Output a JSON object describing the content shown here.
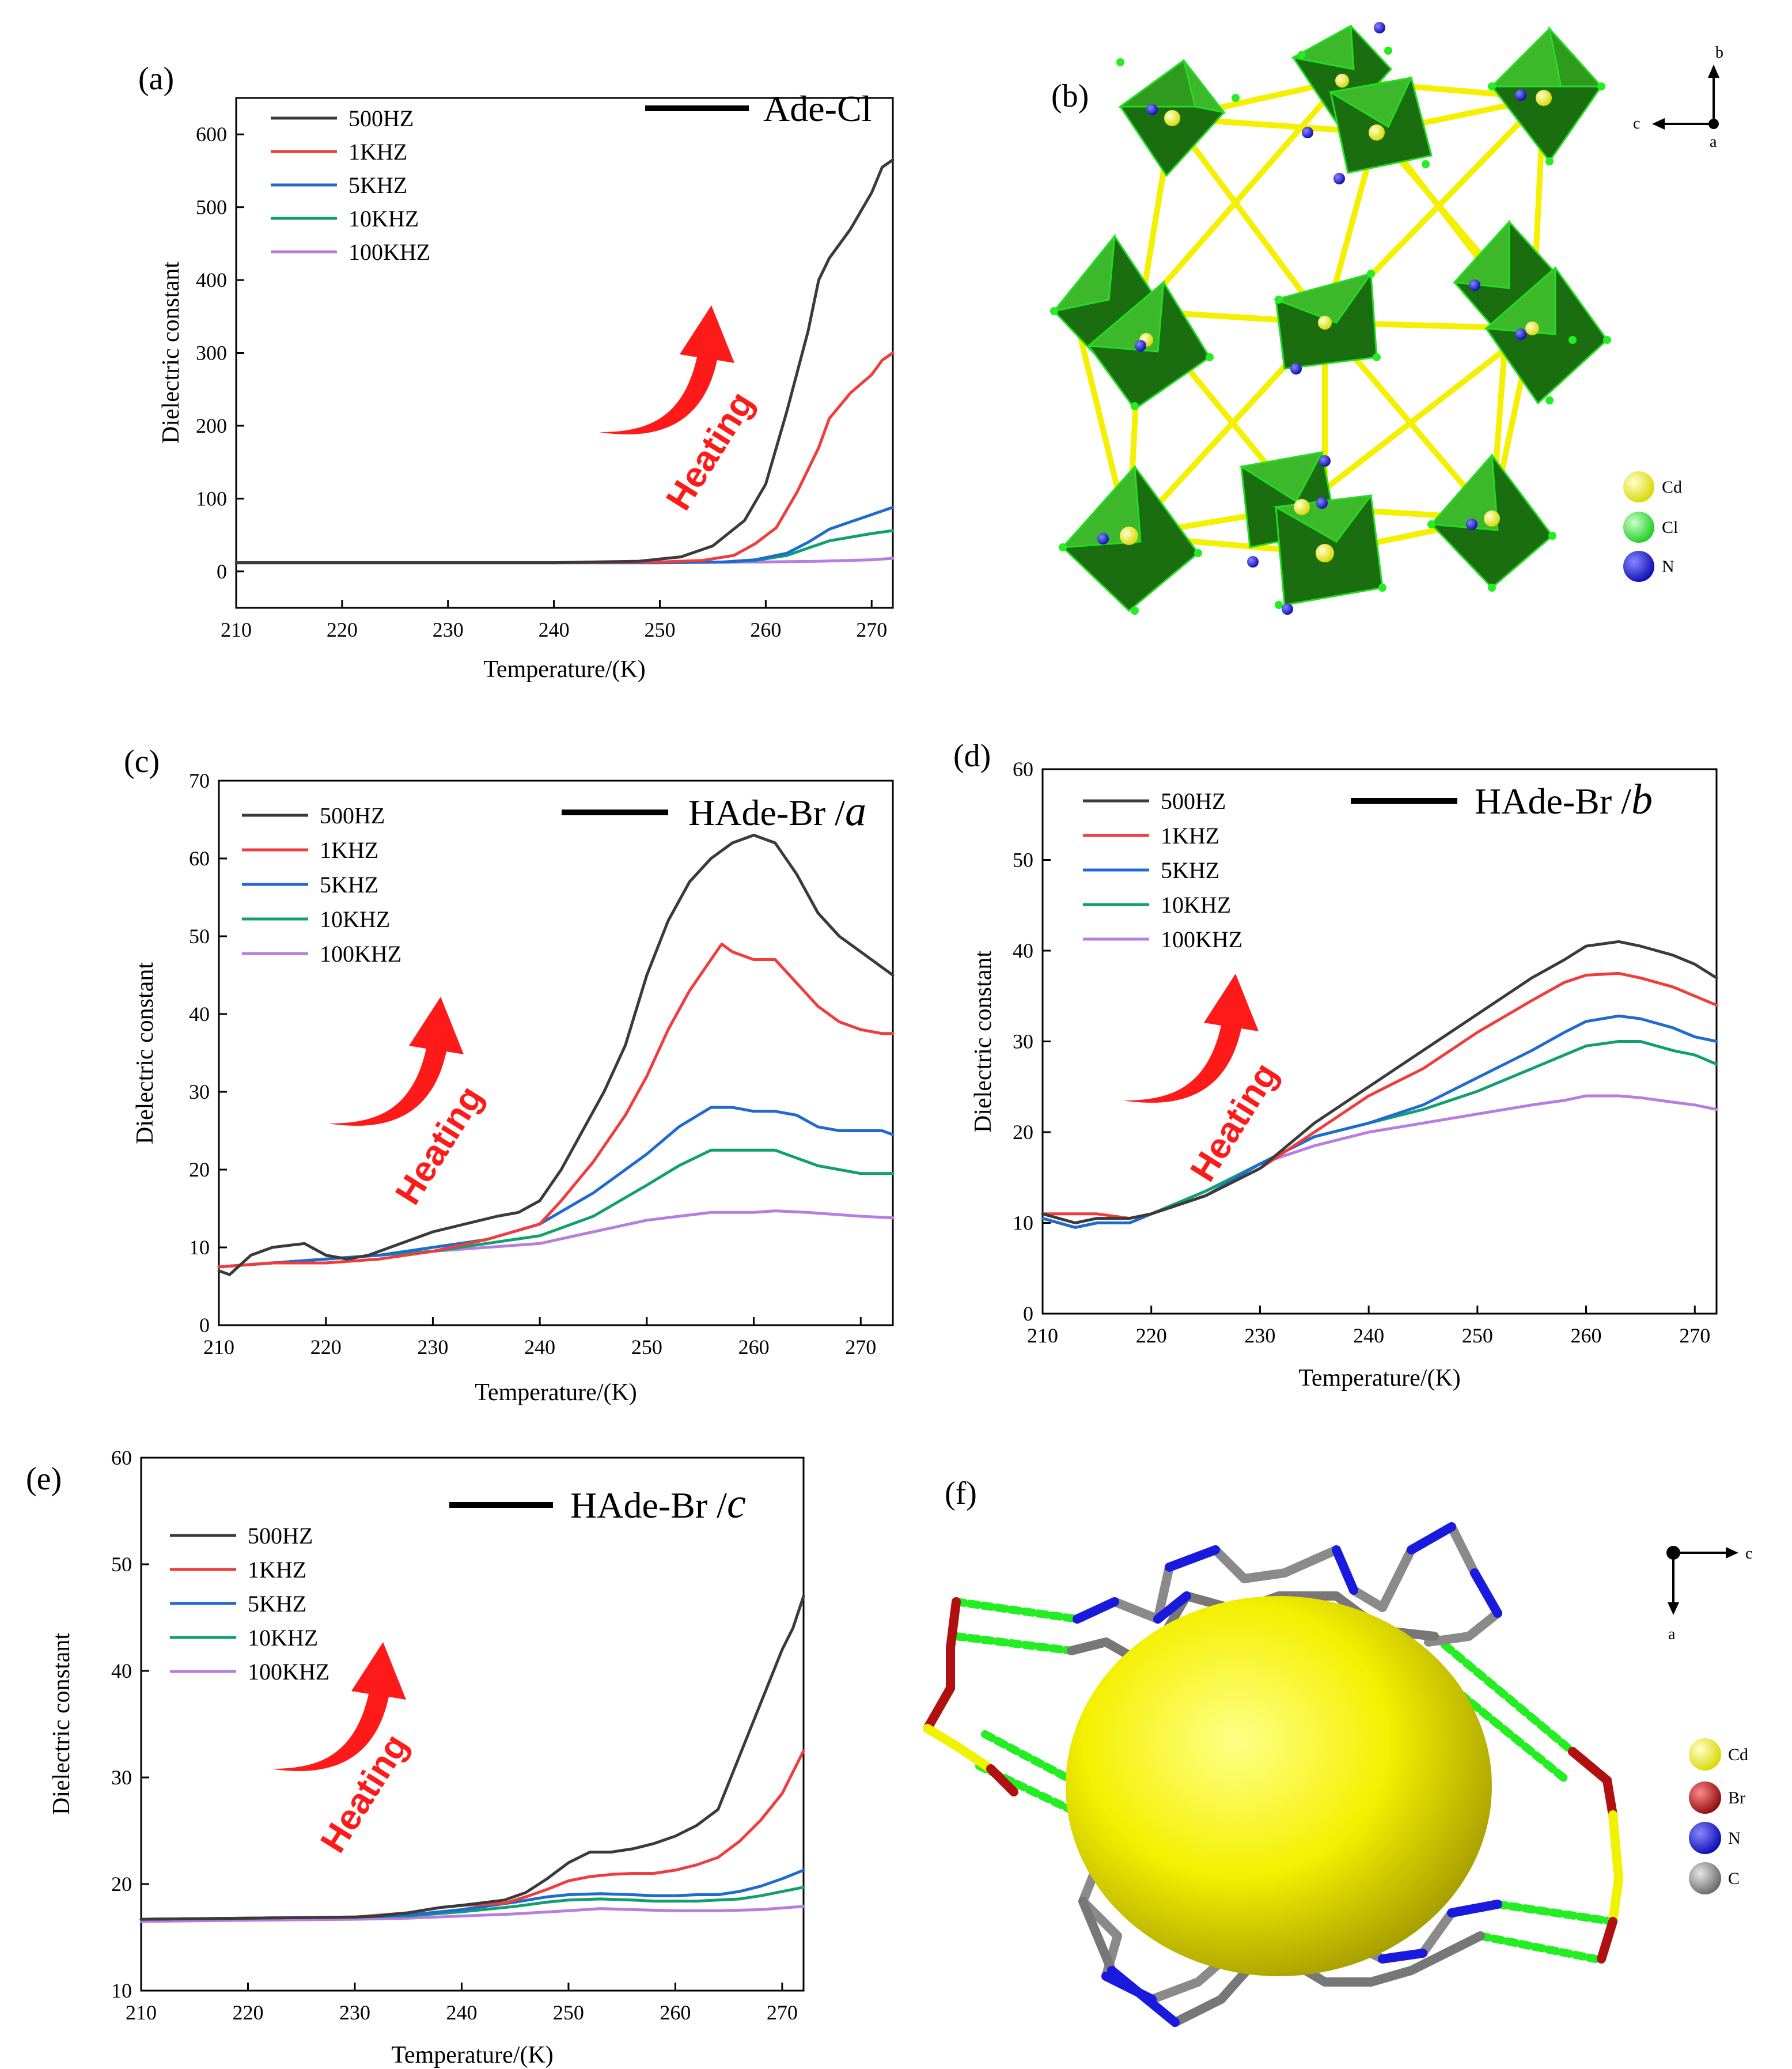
{
  "figure": {
    "series_names": [
      "500HZ",
      "1KHZ",
      "5KHZ",
      "10KHZ",
      "100KHZ"
    ],
    "series_colors": [
      "#3a3a3a",
      "#f03c3c",
      "#1f6ad0",
      "#10a070",
      "#b77de0"
    ],
    "heating_label": "Heating",
    "arrow_color": "#ff1a1a",
    "xlabel": "Temperature/(K)",
    "ylabel": "Dielectric constant"
  },
  "chart_data": [
    {
      "id": "a",
      "panel_label": "(a)",
      "type": "line",
      "sample": "Ade-Cl",
      "sample_italic": "",
      "xlabel": "Temperature/(K)",
      "ylabel": "Dielectric constant",
      "xlim": [
        210,
        272
      ],
      "ylim": [
        -50,
        650
      ],
      "xticks": [
        "210",
        "220",
        "230",
        "240",
        "250",
        "260",
        "270"
      ],
      "yticks": [
        "0",
        "100",
        "200",
        "300",
        "400",
        "500",
        "600"
      ],
      "series": [
        {
          "name": "500HZ",
          "x": [
            210,
            220,
            230,
            240,
            248,
            252,
            255,
            258,
            260,
            262,
            264,
            265,
            266,
            268,
            270,
            271,
            272
          ],
          "values": [
            12,
            12,
            12,
            12,
            14,
            20,
            35,
            70,
            120,
            220,
            330,
            400,
            430,
            470,
            520,
            555,
            565
          ]
        },
        {
          "name": "1KHZ",
          "x": [
            210,
            220,
            230,
            240,
            250,
            254,
            257,
            259,
            261,
            263,
            265,
            266,
            268,
            270,
            271,
            272
          ],
          "values": [
            12,
            12,
            12,
            12,
            13,
            15,
            22,
            38,
            60,
            110,
            170,
            210,
            245,
            270,
            290,
            300
          ]
        },
        {
          "name": "5KHZ",
          "x": [
            210,
            220,
            230,
            240,
            250,
            256,
            259,
            262,
            264,
            266,
            268,
            270,
            272
          ],
          "values": [
            12,
            12,
            12,
            12,
            12,
            13,
            16,
            25,
            40,
            58,
            68,
            78,
            88
          ]
        },
        {
          "name": "10KHZ",
          "x": [
            210,
            220,
            230,
            240,
            250,
            256,
            259,
            262,
            264,
            266,
            268,
            270,
            272
          ],
          "values": [
            12,
            12,
            12,
            12,
            12,
            13,
            15,
            22,
            32,
            42,
            47,
            52,
            56
          ]
        },
        {
          "name": "100KHZ",
          "x": [
            210,
            230,
            250,
            260,
            265,
            270,
            272
          ],
          "values": [
            12,
            12,
            12,
            13,
            14,
            16,
            18
          ]
        }
      ]
    },
    {
      "id": "c",
      "panel_label": "(c)",
      "type": "line",
      "sample": "HAde-Br /",
      "sample_italic": "a",
      "xlabel": "Temperature/(K)",
      "ylabel": "Dielectric constant",
      "xlim": [
        210,
        273
      ],
      "ylim": [
        0,
        70
      ],
      "xticks": [
        "210",
        "220",
        "230",
        "240",
        "250",
        "260",
        "270"
      ],
      "yticks": [
        "0",
        "10",
        "20",
        "30",
        "40",
        "50",
        "60",
        "70"
      ],
      "series": [
        {
          "name": "500HZ",
          "x": [
            210,
            211,
            213,
            215,
            218,
            220,
            222,
            224,
            226,
            228,
            230,
            233,
            236,
            238,
            240,
            242,
            244,
            246,
            248,
            250,
            252,
            254,
            256,
            258,
            260,
            262,
            264,
            266,
            268,
            270,
            272,
            273
          ],
          "values": [
            7,
            6.5,
            9,
            10,
            10.5,
            9,
            8.5,
            9,
            10,
            11,
            12,
            13,
            14,
            14.5,
            16,
            20,
            25,
            30,
            36,
            45,
            52,
            57,
            60,
            62,
            63,
            62,
            58,
            53,
            50,
            48,
            46,
            45
          ]
        },
        {
          "name": "1KHZ",
          "x": [
            210,
            215,
            220,
            225,
            230,
            235,
            240,
            242,
            245,
            248,
            250,
            252,
            254,
            256,
            257,
            258,
            260,
            262,
            264,
            266,
            268,
            270,
            272,
            273
          ],
          "values": [
            7.5,
            8,
            8,
            8.5,
            9.5,
            11,
            13,
            16,
            21,
            27,
            32,
            38,
            43,
            47,
            49,
            48,
            47,
            47,
            44,
            41,
            39,
            38,
            37.5,
            37.5
          ]
        },
        {
          "name": "5KHZ",
          "x": [
            210,
            215,
            220,
            225,
            230,
            235,
            240,
            245,
            250,
            253,
            256,
            258,
            260,
            262,
            264,
            266,
            268,
            270,
            272,
            273
          ],
          "values": [
            7.5,
            8,
            8.5,
            9,
            10,
            11,
            13,
            17,
            22,
            25.5,
            28,
            28,
            27.5,
            27.5,
            27,
            25.5,
            25,
            25,
            25,
            24.5
          ]
        },
        {
          "name": "10KHZ",
          "x": [
            210,
            215,
            220,
            225,
            230,
            235,
            240,
            245,
            250,
            253,
            256,
            258,
            260,
            262,
            264,
            266,
            268,
            270,
            273
          ],
          "values": [
            7.5,
            8,
            8.5,
            9,
            9.5,
            10.5,
            11.5,
            14,
            18,
            20.5,
            22.5,
            22.5,
            22.5,
            22.5,
            21.5,
            20.5,
            20,
            19.5,
            19.5
          ]
        },
        {
          "name": "100KHZ",
          "x": [
            210,
            215,
            220,
            225,
            230,
            235,
            240,
            245,
            250,
            253,
            256,
            258,
            260,
            262,
            265,
            268,
            270,
            273
          ],
          "values": [
            7.5,
            8,
            8.5,
            9,
            9.5,
            10,
            10.5,
            12,
            13.5,
            14,
            14.5,
            14.5,
            14.5,
            14.7,
            14.5,
            14.2,
            14,
            13.8
          ]
        }
      ]
    },
    {
      "id": "d",
      "panel_label": "(d)",
      "type": "line",
      "sample": "HAde-Br /",
      "sample_italic": "b",
      "xlabel": "Temperature/(K)",
      "ylabel": "Dielectric constant",
      "xlim": [
        210,
        272
      ],
      "ylim": [
        0,
        60
      ],
      "xticks": [
        "210",
        "220",
        "230",
        "240",
        "250",
        "260",
        "270"
      ],
      "yticks": [
        "0",
        "10",
        "20",
        "30",
        "40",
        "50",
        "60"
      ],
      "series": [
        {
          "name": "500HZ",
          "x": [
            210,
            213,
            215,
            218,
            220,
            225,
            230,
            235,
            240,
            245,
            250,
            255,
            258,
            260,
            263,
            265,
            268,
            270,
            272
          ],
          "values": [
            11,
            10,
            10.5,
            10.5,
            11,
            13,
            16,
            21,
            25,
            29,
            33,
            37,
            39,
            40.5,
            41,
            40.5,
            39.5,
            38.5,
            37
          ]
        },
        {
          "name": "1KHZ",
          "x": [
            210,
            213,
            215,
            218,
            220,
            225,
            230,
            235,
            240,
            245,
            250,
            255,
            258,
            260,
            263,
            265,
            268,
            270,
            272
          ],
          "values": [
            11,
            11,
            11,
            10.5,
            11,
            13,
            16,
            20,
            24,
            27,
            31,
            34.5,
            36.5,
            37.3,
            37.5,
            37,
            36,
            35,
            34
          ]
        },
        {
          "name": "5KHZ",
          "x": [
            210,
            213,
            215,
            218,
            220,
            225,
            230,
            235,
            240,
            245,
            250,
            255,
            258,
            260,
            263,
            265,
            268,
            270,
            272
          ],
          "values": [
            10.5,
            9.5,
            10,
            10,
            11,
            13,
            16.5,
            19.5,
            21,
            23,
            26,
            29,
            31,
            32.2,
            32.8,
            32.5,
            31.5,
            30.5,
            30
          ]
        },
        {
          "name": "10KHZ",
          "x": [
            210,
            213,
            215,
            218,
            220,
            225,
            230,
            235,
            240,
            245,
            250,
            255,
            258,
            260,
            263,
            265,
            268,
            270,
            272
          ],
          "values": [
            10.5,
            9.5,
            10,
            10,
            11,
            13.5,
            16.5,
            19.5,
            21,
            22.5,
            24.5,
            27,
            28.5,
            29.5,
            30,
            30,
            29,
            28.5,
            27.5
          ]
        },
        {
          "name": "100KHZ",
          "x": [
            210,
            213,
            215,
            218,
            220,
            225,
            230,
            235,
            240,
            245,
            250,
            255,
            258,
            260,
            263,
            265,
            268,
            270,
            272
          ],
          "values": [
            10.5,
            9.5,
            10,
            10,
            11,
            13.5,
            16.5,
            18.5,
            20,
            21,
            22,
            23,
            23.5,
            24,
            24,
            23.8,
            23.3,
            23,
            22.5
          ]
        }
      ]
    },
    {
      "id": "e",
      "panel_label": "(e)",
      "type": "line",
      "sample": "HAde-Br /",
      "sample_italic": "c",
      "xlabel": "Temperature/(K)",
      "ylabel": "Dielectric constant",
      "xlim": [
        210,
        272
      ],
      "ylim": [
        10,
        60
      ],
      "xticks": [
        "210",
        "220",
        "230",
        "240",
        "250",
        "260",
        "270"
      ],
      "yticks": [
        "10",
        "20",
        "30",
        "40",
        "50",
        "60"
      ],
      "series": [
        {
          "name": "500HZ",
          "x": [
            210,
            220,
            230,
            232,
            235,
            238,
            240,
            244,
            246,
            248,
            250,
            252,
            254,
            256,
            258,
            260,
            262,
            264,
            266,
            268,
            270,
            271,
            272
          ],
          "values": [
            16.7,
            16.8,
            16.9,
            17,
            17.3,
            17.8,
            18,
            18.5,
            19.2,
            20.5,
            22,
            23,
            23,
            23.3,
            23.8,
            24.5,
            25.5,
            27,
            32,
            37,
            42,
            44,
            47
          ]
        },
        {
          "name": "1KHZ",
          "x": [
            210,
            220,
            230,
            235,
            238,
            240,
            244,
            246,
            248,
            250,
            252,
            254,
            256,
            258,
            260,
            262,
            264,
            266,
            268,
            270,
            271,
            272
          ],
          "values": [
            16.7,
            16.8,
            16.9,
            17.3,
            17.8,
            18,
            18.2,
            18.8,
            19.5,
            20.3,
            20.7,
            20.9,
            21,
            21,
            21.3,
            21.8,
            22.5,
            24,
            26,
            28.5,
            30.5,
            32.5
          ]
        },
        {
          "name": "5KHZ",
          "x": [
            210,
            220,
            230,
            235,
            240,
            245,
            248,
            250,
            253,
            256,
            258,
            260,
            262,
            264,
            266,
            268,
            270,
            272
          ],
          "values": [
            16.7,
            16.8,
            16.9,
            17.1,
            17.6,
            18.3,
            18.8,
            19,
            19.1,
            19,
            18.9,
            18.9,
            19,
            19,
            19.3,
            19.8,
            20.5,
            21.3
          ]
        },
        {
          "name": "10KHZ",
          "x": [
            210,
            220,
            230,
            235,
            240,
            245,
            248,
            250,
            253,
            256,
            258,
            260,
            262,
            264,
            266,
            268,
            270,
            272
          ],
          "values": [
            16.7,
            16.8,
            16.9,
            17,
            17.4,
            17.9,
            18.3,
            18.5,
            18.6,
            18.5,
            18.4,
            18.4,
            18.4,
            18.5,
            18.6,
            18.9,
            19.3,
            19.7
          ]
        },
        {
          "name": "100KHZ",
          "x": [
            210,
            220,
            230,
            235,
            240,
            245,
            250,
            253,
            256,
            260,
            264,
            268,
            272
          ],
          "values": [
            16.5,
            16.6,
            16.7,
            16.8,
            17,
            17.2,
            17.5,
            17.7,
            17.6,
            17.5,
            17.5,
            17.6,
            17.9
          ]
        }
      ]
    }
  ],
  "structures": {
    "b": {
      "panel_label": "(b)",
      "legend": [
        {
          "label": "Cd",
          "color": "#ffff22"
        },
        {
          "label": "Cl",
          "color": "#22dd22"
        },
        {
          "label": "N",
          "color": "#1111cc"
        }
      ],
      "axes": {
        "up": "b",
        "left": "c",
        "center": "a"
      }
    },
    "f": {
      "panel_label": "(f)",
      "legend": [
        {
          "label": "Cd",
          "color": "#f2f200"
        },
        {
          "label": "Br",
          "color": "#b01010"
        },
        {
          "label": "N",
          "color": "#1a1adf"
        },
        {
          "label": "C",
          "color": "#888888"
        }
      ],
      "axes": {
        "right": "c",
        "down": "a"
      }
    }
  }
}
